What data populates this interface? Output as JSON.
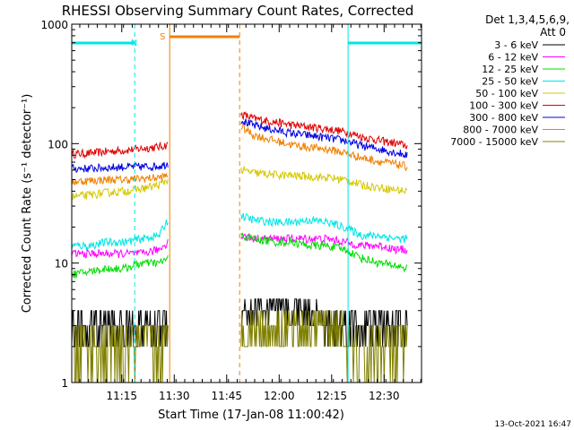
{
  "chart_data": {
    "type": "line",
    "title": "RHESSI Observing Summary Count Rates, Corrected",
    "xlabel": "Start Time (17-Jan-08 11:00:42)",
    "ylabel": "Corrected Count Rate (s⁻¹ detector⁻¹)",
    "yscale": "log",
    "ylim": [
      1,
      1000
    ],
    "xlim": [
      0,
      100
    ],
    "x_unit": "minutes after 11:00:42",
    "y_ticks": [
      "1",
      "10",
      "100",
      "1000"
    ],
    "x_ticks": [
      {
        "label": "11:15",
        "x": 14.3
      },
      {
        "label": "11:30",
        "x": 29.3
      },
      {
        "label": "11:45",
        "x": 44.3
      },
      {
        "label": "12:00",
        "x": 59.3
      },
      {
        "label": "12:15",
        "x": 74.3
      },
      {
        "label": "12:30",
        "x": 89.3
      }
    ],
    "legend": {
      "header": [
        "Det 1,3,4,5,6,9,",
        "Att 0"
      ],
      "placement": "right",
      "entries": [
        {
          "label": "3 - 6 keV",
          "color": "#000000"
        },
        {
          "label": "6 - 12 keV",
          "color": "#ff00ff"
        },
        {
          "label": "12 - 25 keV",
          "color": "#00dd00"
        },
        {
          "label": "25 - 50 keV",
          "color": "#00e5e5"
        },
        {
          "label": "50 - 100 keV",
          "color": "#d4c800"
        },
        {
          "label": "100 - 300 keV",
          "color": "#e00000"
        },
        {
          "label": "300 - 800 keV",
          "color": "#0000e0"
        },
        {
          "label": "800 - 7000 keV",
          "color": "#f08000"
        },
        {
          "label": "7000 - 15000 keV",
          "color": "#808000"
        }
      ]
    },
    "annotations": {
      "night_label": "N",
      "saa_label": "S",
      "night_bands": [
        [
          0,
          18
        ],
        [
          79,
          100
        ]
      ],
      "saa_band": [
        28,
        48
      ],
      "night_vlines": [
        0,
        18,
        79,
        100
      ],
      "saa_vlines": [
        28,
        48
      ],
      "night_color": "#00e5e5",
      "saa_color": "#f08000"
    },
    "data_gaps": [
      [
        27.5,
        48.2
      ]
    ],
    "series": [
      {
        "name": "100 - 300 keV",
        "color": "#e00000",
        "x": [
          0,
          5,
          10,
          15,
          20,
          25,
          27.5,
          48.2,
          52,
          58,
          63,
          68,
          73,
          78,
          83,
          88,
          93,
          96
        ],
        "y": [
          82,
          83,
          86,
          88,
          91,
          94,
          98,
          178,
          162,
          152,
          143,
          138,
          133,
          126,
          114,
          106,
          100,
          96
        ]
      },
      {
        "name": "300 - 800 keV",
        "color": "#0000e0",
        "x": [
          0,
          5,
          10,
          15,
          20,
          25,
          27.5,
          48.2,
          52,
          58,
          63,
          68,
          73,
          78,
          83,
          88,
          93,
          96
        ],
        "y": [
          62,
          62,
          63,
          64,
          64,
          65,
          68,
          158,
          142,
          130,
          122,
          117,
          112,
          106,
          96,
          90,
          84,
          80
        ]
      },
      {
        "name": "800 - 7000 keV",
        "color": "#f08000",
        "x": [
          0,
          5,
          10,
          15,
          20,
          25,
          27.5,
          48.2,
          52,
          58,
          63,
          68,
          73,
          78,
          83,
          88,
          93,
          96
        ],
        "y": [
          48,
          49,
          50,
          50,
          51,
          52,
          54,
          140,
          118,
          106,
          98,
          93,
          90,
          84,
          76,
          71,
          67,
          64
        ]
      },
      {
        "name": "50 - 100 keV",
        "color": "#d4c800",
        "x": [
          0,
          5,
          10,
          15,
          20,
          25,
          27.5,
          48.2,
          52,
          58,
          63,
          68,
          73,
          78,
          83,
          88,
          93,
          96
        ],
        "y": [
          36,
          37,
          39,
          40,
          42,
          45,
          50,
          60,
          57,
          55,
          54,
          53,
          52,
          50,
          45,
          43,
          41,
          40
        ]
      },
      {
        "name": "25 - 50 keV",
        "color": "#00e5e5",
        "x": [
          0,
          5,
          10,
          15,
          20,
          25,
          27.5,
          48.2,
          52,
          58,
          63,
          68,
          73,
          78,
          83,
          88,
          93,
          96
        ],
        "y": [
          14,
          14,
          15,
          15,
          16,
          17,
          23,
          25,
          23,
          22,
          22,
          23,
          22,
          20,
          17,
          17,
          16,
          16
        ]
      },
      {
        "name": "6 - 12 keV",
        "color": "#ff00ff",
        "x": [
          0,
          5,
          10,
          15,
          20,
          25,
          27.5,
          48.2,
          52,
          58,
          63,
          68,
          73,
          78,
          83,
          88,
          93,
          96
        ],
        "y": [
          12,
          12,
          12,
          12,
          12,
          13,
          15,
          17,
          16,
          16,
          16,
          16,
          16,
          15,
          14,
          14,
          13,
          13
        ]
      },
      {
        "name": "12 - 25 keV",
        "color": "#00dd00",
        "x": [
          0,
          5,
          10,
          15,
          20,
          25,
          27.5,
          48.2,
          52,
          58,
          63,
          68,
          73,
          78,
          83,
          88,
          93,
          96
        ],
        "y": [
          8,
          8.5,
          9,
          9,
          10,
          10,
          11,
          17,
          16,
          15,
          15,
          14,
          14,
          13,
          11,
          10,
          9.5,
          9
        ]
      },
      {
        "name": "3 - 6 keV",
        "color": "#000000",
        "x": [
          0,
          5,
          10,
          15,
          20,
          25,
          27.5,
          48.2,
          52,
          58,
          63,
          68,
          73,
          78,
          83,
          88,
          93,
          96
        ],
        "y": [
          2.5,
          2.5,
          2.5,
          3,
          3,
          3,
          3,
          4,
          4,
          4,
          4,
          4,
          3,
          3,
          3,
          3,
          3,
          3
        ]
      },
      {
        "name": "7000 - 15000 keV",
        "color": "#808000",
        "x": [
          0,
          5,
          10,
          15,
          20,
          25,
          27.5,
          48.2,
          52,
          58,
          63,
          68,
          73,
          78,
          83,
          88,
          93,
          96
        ],
        "y": [
          1.8,
          1.8,
          1.8,
          2,
          2,
          2,
          2,
          2.5,
          2.5,
          2.5,
          2.8,
          3,
          3,
          2.5,
          2,
          2,
          2,
          2
        ]
      }
    ]
  },
  "footer": {
    "timestamp": "13-Oct-2021 16:47"
  }
}
